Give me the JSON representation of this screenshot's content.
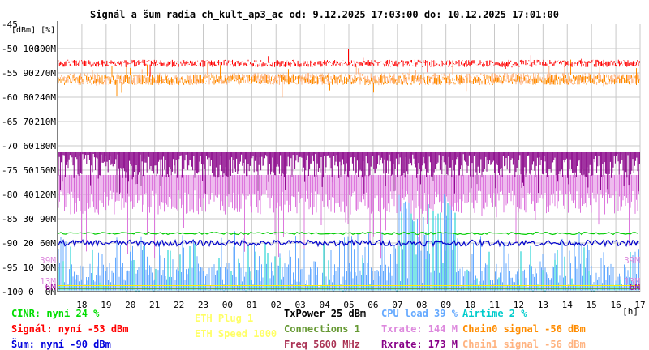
{
  "chart_data": {
    "type": "line",
    "title": "Signál a šum radia ch_kult_ap3_ac od: 9.12.2025 17:03:00 do: 10.12.2025 17:01:00",
    "y_units_header": "[dBm] [%]",
    "x_unit": "[h]",
    "x_ticks": [
      "18",
      "19",
      "20",
      "21",
      "22",
      "23",
      "00",
      "01",
      "02",
      "03",
      "04",
      "05",
      "06",
      "07",
      "08",
      "09",
      "10",
      "11",
      "12",
      "13",
      "14",
      "15",
      "16",
      "17"
    ],
    "y_ticks": [
      {
        "dbm": "-45",
        "pct": "",
        "rate": ""
      },
      {
        "dbm": "-50",
        "pct": "100",
        "rate": "300M"
      },
      {
        "dbm": "-55",
        "pct": "90",
        "rate": "270M"
      },
      {
        "dbm": "-60",
        "pct": "80",
        "rate": "240M"
      },
      {
        "dbm": "-65",
        "pct": "70",
        "rate": "210M"
      },
      {
        "dbm": "-70",
        "pct": "60",
        "rate": "180M"
      },
      {
        "dbm": "-75",
        "pct": "50",
        "rate": "150M"
      },
      {
        "dbm": "-80",
        "pct": "40",
        "rate": "120M"
      },
      {
        "dbm": "-85",
        "pct": "30",
        "rate": "90M"
      },
      {
        "dbm": "-90",
        "pct": "20",
        "rate": "60M"
      },
      {
        "dbm": "-95",
        "pct": "10",
        "rate": "30M"
      },
      {
        "dbm": "-100",
        "pct": "0",
        "rate": "0M"
      }
    ],
    "ylim_dbm": [
      -100,
      -45
    ],
    "xlim_hours": [
      17,
      41
    ],
    "side_markers": [
      {
        "label": "39M",
        "color": "#dd88dd",
        "rate_mbps": 39
      },
      {
        "label": "13M",
        "color": "#dd88dd",
        "rate_mbps": 13
      },
      {
        "label": "6M",
        "color": "#990099",
        "rate_mbps": 6
      }
    ],
    "series": [
      {
        "name": "Signál",
        "color": "#ff0000",
        "unit": "dBm",
        "base": -53,
        "band": [
          -54,
          -52
        ]
      },
      {
        "name": "Chain0 signal",
        "color": "#ff8c00",
        "unit": "dBm",
        "base": -56,
        "band": [
          -57.5,
          -55
        ]
      },
      {
        "name": "Chain1 signal",
        "color": "#ffb380",
        "unit": "dBm",
        "base": -56,
        "band": [
          -57.5,
          -55
        ]
      },
      {
        "name": "Rxrate",
        "color": "#880088",
        "unit": "Mbps",
        "base": 173,
        "band": [
          135,
          173
        ]
      },
      {
        "name": "Txrate",
        "color": "#dd77dd",
        "unit": "Mbps",
        "base": 144,
        "band": [
          95,
          144
        ]
      },
      {
        "name": "Šum",
        "color": "#0000cc",
        "unit": "dBm",
        "base": -90,
        "band": [
          -91,
          -89
        ]
      },
      {
        "name": "CINR",
        "color": "#00cc00",
        "unit": "%",
        "base": 24,
        "band": [
          23,
          25
        ]
      },
      {
        "name": "CPU load",
        "color": "#66aaff",
        "unit": "%",
        "base": 39,
        "band": [
          0,
          25
        ]
      },
      {
        "name": "Airtime",
        "color": "#00cccc",
        "unit": "%",
        "base": 2,
        "band": [
          0,
          40
        ]
      },
      {
        "name": "ETH Plug",
        "color": "#ffee00",
        "unit": "",
        "base": 1,
        "band": [
          1,
          1
        ]
      },
      {
        "name": "Connections",
        "color": "#669933",
        "unit": "",
        "base": 1,
        "band": [
          1,
          1
        ]
      }
    ],
    "reference_lines": [
      {
        "label": "Freq",
        "color": "#aa3355",
        "value_pct": 38.5
      },
      {
        "label": "",
        "color": "#9999ff",
        "value_pct": 1.5
      }
    ]
  },
  "legend": {
    "col1": [
      {
        "text": "CINR: nyní 24 %",
        "color": "#00dd00"
      },
      {
        "text": "Signál: nyní -53 dBm",
        "color": "#ff0000"
      },
      {
        "text": "Šum: nyní -90 dBm",
        "color": "#0000dd"
      }
    ],
    "col2": [
      {
        "text": "ETH Plug 1",
        "color": "#ffff66"
      },
      {
        "text": "ETH Speed 1000",
        "color": "#ffff66"
      }
    ],
    "col3": [
      {
        "text": "TxPower 25 dBm",
        "color": "#000000"
      },
      {
        "text": "Connections 1",
        "color": "#669933"
      },
      {
        "text": "Freq 5600 MHz",
        "color": "#aa3355"
      }
    ],
    "col4": [
      {
        "text": "CPU load 39 %",
        "color": "#66aaff"
      },
      {
        "text": "Txrate: 144 M",
        "color": "#dd88dd"
      },
      {
        "text": "Rxrate: 173 M",
        "color": "#880088"
      }
    ],
    "col5": [
      {
        "text": "Airtime 2 %",
        "color": "#00cccc"
      },
      {
        "text": "Chain0 signal -56 dBm",
        "color": "#ff8c00"
      },
      {
        "text": "Chain1 signal -56 dBm",
        "color": "#ffb380"
      }
    ]
  }
}
